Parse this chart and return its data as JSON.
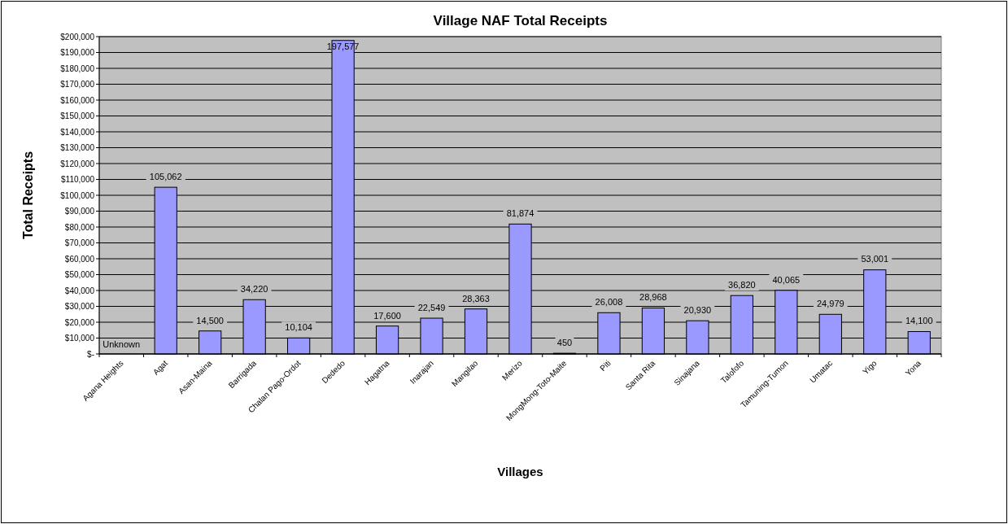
{
  "chart_data": {
    "type": "bar",
    "title": "Village NAF Total Receipts",
    "xlabel": "Villages",
    "ylabel": "Total Receipts",
    "categories": [
      "Agana Heights",
      "Agat",
      "Asan-Maina",
      "Barrigada",
      "Chalan Pago-Ordot",
      "Dededo",
      "Hagatna",
      "Inarajan",
      "Mangilao",
      "Merizo",
      "MongMong-Toto-Maite",
      "Piti",
      "Santa Rita",
      "Sinajana",
      "Talofofo",
      "Tamuning-Tumon",
      "Umatac",
      "Yigo",
      "Yona"
    ],
    "values": [
      null,
      105062,
      14500,
      34220,
      10104,
      197577,
      17600,
      22549,
      28363,
      81874,
      450,
      26008,
      28968,
      20930,
      36820,
      40065,
      24979,
      53001,
      14100
    ],
    "value_labels": [
      "Unknown",
      "105,062",
      "14,500",
      "34,220",
      "10,104",
      "197,577",
      "17,600",
      "22,549",
      "28,363",
      "81,874",
      "450",
      "26,008",
      "28,968",
      "20,930",
      "36,820",
      "40,065",
      "24,979",
      "53,001",
      "14,100"
    ],
    "color": "#9999ff",
    "ylim": [
      0,
      200000
    ],
    "yticks": [
      {
        "value": 0,
        "label": "$-"
      },
      {
        "value": 10000,
        "label": "$10,000"
      },
      {
        "value": 20000,
        "label": "$20,000"
      },
      {
        "value": 30000,
        "label": "$30,000"
      },
      {
        "value": 40000,
        "label": "$40,000"
      },
      {
        "value": 50000,
        "label": "$50,000"
      },
      {
        "value": 60000,
        "label": "$60,000"
      },
      {
        "value": 70000,
        "label": "$70,000"
      },
      {
        "value": 80000,
        "label": "$80,000"
      },
      {
        "value": 90000,
        "label": "$90,000"
      },
      {
        "value": 100000,
        "label": "$100,000"
      },
      {
        "value": 110000,
        "label": "$110,000"
      },
      {
        "value": 120000,
        "label": "$120,000"
      },
      {
        "value": 130000,
        "label": "$130,000"
      },
      {
        "value": 140000,
        "label": "$140,000"
      },
      {
        "value": 150000,
        "label": "$150,000"
      },
      {
        "value": 160000,
        "label": "$160,000"
      },
      {
        "value": 170000,
        "label": "$170,000"
      },
      {
        "value": 180000,
        "label": "$180,000"
      },
      {
        "value": 190000,
        "label": "$190,000"
      },
      {
        "value": 200000,
        "label": "$200,000"
      }
    ],
    "grid": "y"
  }
}
